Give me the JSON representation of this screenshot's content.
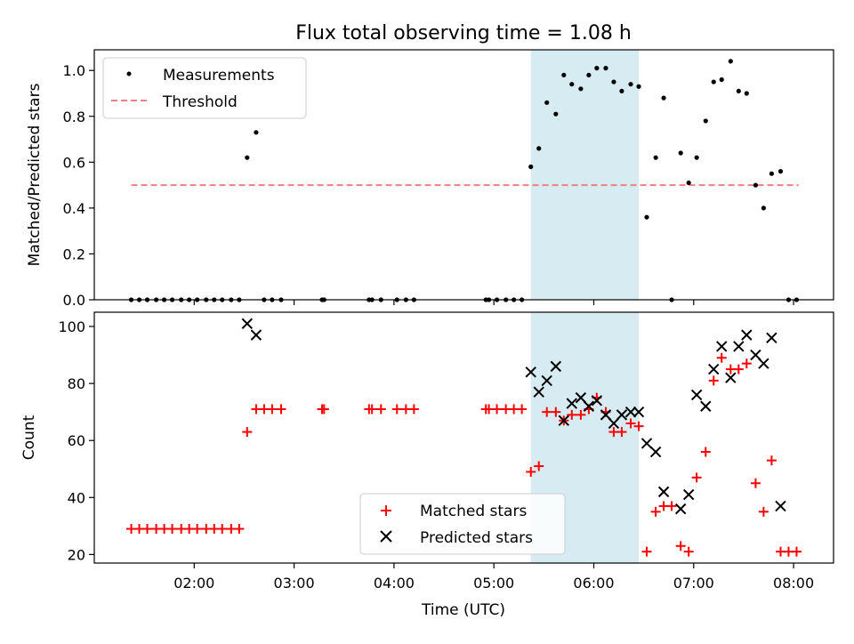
{
  "title": "Flux total observing time = 1.08 h",
  "chart_data": [
    {
      "type": "scatter",
      "ylabel": "Matched/Predicted stars",
      "xlim_hours": [
        1.0,
        8.4
      ],
      "ylim": [
        0,
        1.09
      ],
      "yticks": [
        0.0,
        0.2,
        0.4,
        0.6,
        0.8,
        1.0
      ],
      "yticklabels": [
        "0.0",
        "0.2",
        "0.4",
        "0.6",
        "0.8",
        "1.0"
      ],
      "shaded_span_hours": [
        5.37,
        6.45
      ],
      "legend": {
        "placement": "top-left",
        "entries": [
          "Measurements",
          "Threshold"
        ]
      },
      "threshold": {
        "name": "Threshold",
        "y": 0.5,
        "x_range_hours": [
          1.37,
          8.05
        ],
        "color": "#f08080",
        "style": "dashed"
      },
      "series": [
        {
          "name": "Measurements",
          "color": "#000000",
          "marker": "dot",
          "points": [
            [
              1.37,
              0
            ],
            [
              1.45,
              0
            ],
            [
              1.53,
              0
            ],
            [
              1.62,
              0
            ],
            [
              1.7,
              0
            ],
            [
              1.78,
              0
            ],
            [
              1.87,
              0
            ],
            [
              1.95,
              0
            ],
            [
              2.03,
              0
            ],
            [
              2.12,
              0
            ],
            [
              2.2,
              0
            ],
            [
              2.28,
              0
            ],
            [
              2.37,
              0
            ],
            [
              2.45,
              0
            ],
            [
              2.53,
              0.62
            ],
            [
              2.62,
              0.73
            ],
            [
              2.7,
              0
            ],
            [
              2.78,
              0
            ],
            [
              2.87,
              0
            ],
            [
              3.28,
              0
            ],
            [
              3.3,
              0
            ],
            [
              3.75,
              0
            ],
            [
              3.78,
              0
            ],
            [
              3.87,
              0
            ],
            [
              4.03,
              0
            ],
            [
              4.12,
              0
            ],
            [
              4.2,
              0
            ],
            [
              4.92,
              0
            ],
            [
              4.95,
              0
            ],
            [
              5.03,
              0
            ],
            [
              5.12,
              0
            ],
            [
              5.2,
              0
            ],
            [
              5.28,
              0
            ],
            [
              5.37,
              0.58
            ],
            [
              5.45,
              0.66
            ],
            [
              5.53,
              0.86
            ],
            [
              5.62,
              0.81
            ],
            [
              5.7,
              0.98
            ],
            [
              5.78,
              0.94
            ],
            [
              5.87,
              0.92
            ],
            [
              5.95,
              0.98
            ],
            [
              6.03,
              1.01
            ],
            [
              6.12,
              1.01
            ],
            [
              6.2,
              0.95
            ],
            [
              6.28,
              0.91
            ],
            [
              6.37,
              0.94
            ],
            [
              6.45,
              0.93
            ],
            [
              6.53,
              0.36
            ],
            [
              6.62,
              0.62
            ],
            [
              6.7,
              0.88
            ],
            [
              6.78,
              0
            ],
            [
              6.87,
              0.64
            ],
            [
              6.95,
              0.51
            ],
            [
              7.03,
              0.62
            ],
            [
              7.12,
              0.78
            ],
            [
              7.2,
              0.95
            ],
            [
              7.28,
              0.96
            ],
            [
              7.37,
              1.04
            ],
            [
              7.45,
              0.91
            ],
            [
              7.53,
              0.9
            ],
            [
              7.62,
              0.5
            ],
            [
              7.7,
              0.4
            ],
            [
              7.78,
              0.55
            ],
            [
              7.87,
              0.56
            ],
            [
              7.95,
              0
            ],
            [
              8.03,
              0
            ]
          ]
        }
      ]
    },
    {
      "type": "scatter",
      "xlabel": "Time (UTC)",
      "ylabel": "Count",
      "xlim_hours": [
        1.0,
        8.4
      ],
      "ylim": [
        17,
        105
      ],
      "yticks": [
        20,
        40,
        60,
        80,
        100
      ],
      "yticklabels": [
        "20",
        "40",
        "60",
        "80",
        "100"
      ],
      "xticks_hours": [
        2,
        3,
        4,
        5,
        6,
        7,
        8
      ],
      "xticklabels": [
        "02:00",
        "03:00",
        "04:00",
        "05:00",
        "06:00",
        "07:00",
        "08:00"
      ],
      "shaded_span_hours": [
        5.37,
        6.45
      ],
      "legend": {
        "placement": "bottom-center",
        "entries": [
          "Matched stars",
          "Predicted stars"
        ]
      },
      "series": [
        {
          "name": "Matched stars",
          "color": "#ff0000",
          "marker": "plus",
          "points": [
            [
              1.37,
              29
            ],
            [
              1.45,
              29
            ],
            [
              1.53,
              29
            ],
            [
              1.62,
              29
            ],
            [
              1.7,
              29
            ],
            [
              1.78,
              29
            ],
            [
              1.87,
              29
            ],
            [
              1.95,
              29
            ],
            [
              2.03,
              29
            ],
            [
              2.12,
              29
            ],
            [
              2.2,
              29
            ],
            [
              2.28,
              29
            ],
            [
              2.37,
              29
            ],
            [
              2.45,
              29
            ],
            [
              2.53,
              63
            ],
            [
              2.62,
              71
            ],
            [
              2.7,
              71
            ],
            [
              2.78,
              71
            ],
            [
              2.87,
              71
            ],
            [
              3.28,
              71
            ],
            [
              3.3,
              71
            ],
            [
              3.75,
              71
            ],
            [
              3.78,
              71
            ],
            [
              3.87,
              71
            ],
            [
              4.03,
              71
            ],
            [
              4.12,
              71
            ],
            [
              4.2,
              71
            ],
            [
              4.92,
              71
            ],
            [
              4.95,
              71
            ],
            [
              5.03,
              71
            ],
            [
              5.12,
              71
            ],
            [
              5.2,
              71
            ],
            [
              5.28,
              71
            ],
            [
              5.37,
              49
            ],
            [
              5.45,
              51
            ],
            [
              5.53,
              70
            ],
            [
              5.62,
              70
            ],
            [
              5.7,
              67
            ],
            [
              5.78,
              69
            ],
            [
              5.87,
              69
            ],
            [
              5.95,
              71
            ],
            [
              6.03,
              75
            ],
            [
              6.12,
              70
            ],
            [
              6.2,
              63
            ],
            [
              6.28,
              63
            ],
            [
              6.37,
              66
            ],
            [
              6.45,
              65
            ],
            [
              6.53,
              21
            ],
            [
              6.62,
              35
            ],
            [
              6.7,
              37
            ],
            [
              6.78,
              37
            ],
            [
              6.87,
              23
            ],
            [
              6.95,
              21
            ],
            [
              7.03,
              47
            ],
            [
              7.12,
              56
            ],
            [
              7.2,
              81
            ],
            [
              7.28,
              89
            ],
            [
              7.37,
              85
            ],
            [
              7.45,
              85
            ],
            [
              7.53,
              87
            ],
            [
              7.62,
              45
            ],
            [
              7.7,
              35
            ],
            [
              7.78,
              53
            ],
            [
              7.87,
              21
            ],
            [
              7.95,
              21
            ],
            [
              8.03,
              21
            ]
          ]
        },
        {
          "name": "Predicted stars",
          "color": "#000000",
          "marker": "x",
          "points": [
            [
              2.53,
              101
            ],
            [
              2.62,
              97
            ],
            [
              5.37,
              84
            ],
            [
              5.45,
              77
            ],
            [
              5.53,
              81
            ],
            [
              5.62,
              86
            ],
            [
              5.7,
              67
            ],
            [
              5.78,
              73
            ],
            [
              5.87,
              75
            ],
            [
              5.95,
              72
            ],
            [
              6.03,
              74
            ],
            [
              6.12,
              69
            ],
            [
              6.2,
              66
            ],
            [
              6.28,
              69
            ],
            [
              6.37,
              70
            ],
            [
              6.45,
              70
            ],
            [
              6.53,
              59
            ],
            [
              6.62,
              56
            ],
            [
              6.7,
              42
            ],
            [
              6.87,
              36
            ],
            [
              6.95,
              41
            ],
            [
              7.03,
              76
            ],
            [
              7.12,
              72
            ],
            [
              7.2,
              85
            ],
            [
              7.28,
              93
            ],
            [
              7.37,
              82
            ],
            [
              7.45,
              93
            ],
            [
              7.53,
              97
            ],
            [
              7.62,
              90
            ],
            [
              7.7,
              87
            ],
            [
              7.78,
              96
            ],
            [
              7.87,
              37
            ]
          ]
        }
      ]
    }
  ]
}
